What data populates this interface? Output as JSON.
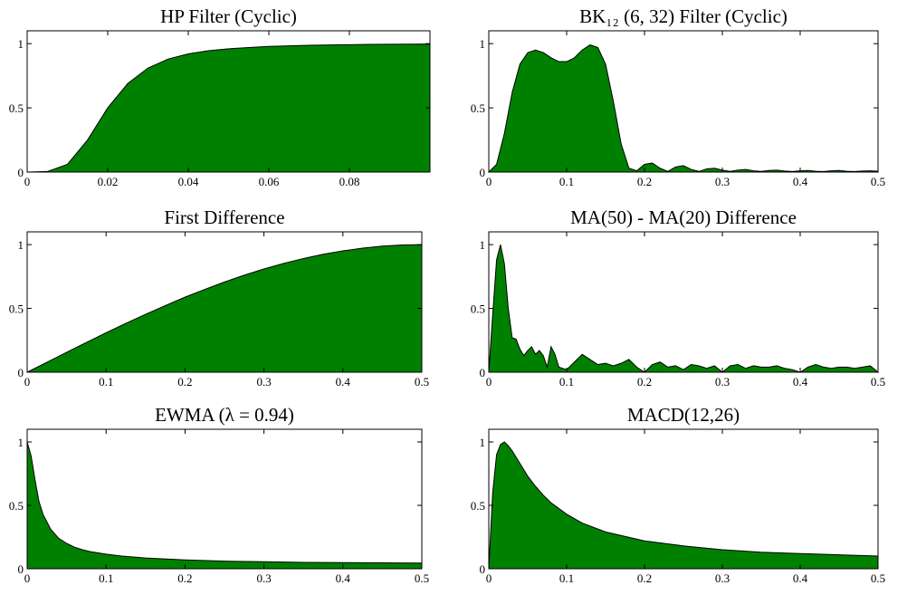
{
  "colors": {
    "fill": "#008000",
    "stroke": "#000000",
    "background": "#ffffff"
  },
  "chart_data": [
    {
      "type": "area",
      "title": "HP Filter (Cyclic)",
      "xlabel": "",
      "ylabel": "",
      "xlim": [
        0,
        0.1
      ],
      "ylim": [
        0,
        1.1
      ],
      "xticks": [
        0,
        0.02,
        0.04,
        0.06,
        0.08
      ],
      "xtick_labels": [
        "0",
        "0.02",
        "0.04",
        "0.06",
        "0.08"
      ],
      "yticks": [
        0,
        0.5,
        1
      ],
      "ytick_labels": [
        "0",
        "0.5",
        "1"
      ],
      "series": [
        {
          "x": [
            0,
            0.005,
            0.01,
            0.015,
            0.02,
            0.025,
            0.03,
            0.035,
            0.04,
            0.045,
            0.05,
            0.055,
            0.06,
            0.065,
            0.07,
            0.075,
            0.08,
            0.085,
            0.09,
            0.095,
            0.1
          ],
          "y": [
            0,
            0.004,
            0.06,
            0.25,
            0.5,
            0.69,
            0.81,
            0.88,
            0.92,
            0.945,
            0.96,
            0.97,
            0.978,
            0.983,
            0.987,
            0.99,
            0.992,
            0.994,
            0.995,
            0.996,
            0.997
          ]
        }
      ]
    },
    {
      "type": "area",
      "title": "BK₁₂ (6, 32) Filter (Cyclic)",
      "xlabel": "",
      "ylabel": "",
      "xlim": [
        0,
        0.5
      ],
      "ylim": [
        0,
        1.1
      ],
      "xticks": [
        0,
        0.1,
        0.2,
        0.3,
        0.4,
        0.5
      ],
      "xtick_labels": [
        "0",
        "0.1",
        "0.2",
        "0.3",
        "0.4",
        "0.5"
      ],
      "yticks": [
        0,
        0.5,
        1
      ],
      "ytick_labels": [
        "0",
        "0.5",
        "1"
      ],
      "series": [
        {
          "x": [
            0,
            0.01,
            0.02,
            0.03,
            0.04,
            0.05,
            0.06,
            0.07,
            0.08,
            0.09,
            0.1,
            0.11,
            0.12,
            0.13,
            0.14,
            0.15,
            0.16,
            0.17,
            0.18,
            0.19,
            0.2,
            0.21,
            0.22,
            0.23,
            0.24,
            0.25,
            0.26,
            0.27,
            0.28,
            0.29,
            0.3,
            0.31,
            0.32,
            0.33,
            0.34,
            0.35,
            0.36,
            0.37,
            0.38,
            0.39,
            0.4,
            0.41,
            0.42,
            0.43,
            0.44,
            0.45,
            0.46,
            0.47,
            0.48,
            0.49,
            0.5
          ],
          "y": [
            0,
            0.06,
            0.3,
            0.62,
            0.84,
            0.93,
            0.95,
            0.93,
            0.89,
            0.86,
            0.86,
            0.89,
            0.95,
            0.99,
            0.97,
            0.84,
            0.55,
            0.22,
            0.03,
            0.01,
            0.06,
            0.07,
            0.03,
            0.005,
            0.04,
            0.05,
            0.02,
            0.005,
            0.025,
            0.03,
            0.015,
            0.005,
            0.015,
            0.02,
            0.01,
            0.005,
            0.012,
            0.015,
            0.008,
            0.004,
            0.01,
            0.012,
            0.006,
            0.004,
            0.01,
            0.012,
            0.006,
            0.004,
            0.008,
            0.01,
            0.006
          ]
        }
      ]
    },
    {
      "type": "area",
      "title": "First Difference",
      "xlabel": "",
      "ylabel": "",
      "xlim": [
        0,
        0.5
      ],
      "ylim": [
        0,
        1.1
      ],
      "xticks": [
        0,
        0.1,
        0.2,
        0.3,
        0.4,
        0.5
      ],
      "xtick_labels": [
        "0",
        "0.1",
        "0.2",
        "0.3",
        "0.4",
        "0.5"
      ],
      "yticks": [
        0,
        0.5,
        1
      ],
      "ytick_labels": [
        "0",
        "0.5",
        "1"
      ],
      "series": [
        {
          "x": [
            0,
            0.025,
            0.05,
            0.075,
            0.1,
            0.125,
            0.15,
            0.175,
            0.2,
            0.225,
            0.25,
            0.275,
            0.3,
            0.325,
            0.35,
            0.375,
            0.4,
            0.425,
            0.45,
            0.475,
            0.5
          ],
          "y": [
            0,
            0.078,
            0.156,
            0.233,
            0.309,
            0.383,
            0.454,
            0.522,
            0.588,
            0.649,
            0.707,
            0.76,
            0.809,
            0.853,
            0.891,
            0.924,
            0.951,
            0.972,
            0.988,
            0.997,
            1.0
          ]
        }
      ]
    },
    {
      "type": "area",
      "title": "MA(50) - MA(20) Difference",
      "xlabel": "",
      "ylabel": "",
      "xlim": [
        0,
        0.5
      ],
      "ylim": [
        0,
        1.1
      ],
      "xticks": [
        0,
        0.1,
        0.2,
        0.3,
        0.4,
        0.5
      ],
      "xtick_labels": [
        "0",
        "0.1",
        "0.2",
        "0.3",
        "0.4",
        "0.5"
      ],
      "yticks": [
        0,
        0.5,
        1
      ],
      "ytick_labels": [
        "0",
        "0.5",
        "1"
      ],
      "series": [
        {
          "x": [
            0,
            0.005,
            0.01,
            0.015,
            0.02,
            0.025,
            0.03,
            0.035,
            0.04,
            0.045,
            0.05,
            0.055,
            0.06,
            0.065,
            0.07,
            0.075,
            0.08,
            0.085,
            0.09,
            0.1,
            0.11,
            0.12,
            0.13,
            0.14,
            0.15,
            0.16,
            0.17,
            0.18,
            0.19,
            0.2,
            0.21,
            0.22,
            0.23,
            0.24,
            0.25,
            0.26,
            0.27,
            0.28,
            0.29,
            0.3,
            0.31,
            0.32,
            0.33,
            0.34,
            0.35,
            0.36,
            0.37,
            0.38,
            0.39,
            0.4,
            0.41,
            0.42,
            0.43,
            0.44,
            0.45,
            0.46,
            0.47,
            0.48,
            0.49,
            0.5
          ],
          "y": [
            0,
            0.45,
            0.88,
            1.0,
            0.85,
            0.5,
            0.27,
            0.26,
            0.18,
            0.13,
            0.17,
            0.2,
            0.14,
            0.17,
            0.13,
            0.04,
            0.2,
            0.14,
            0.04,
            0.02,
            0.08,
            0.14,
            0.1,
            0.06,
            0.07,
            0.05,
            0.07,
            0.1,
            0.04,
            0.0,
            0.06,
            0.08,
            0.04,
            0.05,
            0.02,
            0.06,
            0.05,
            0.03,
            0.05,
            0.0,
            0.05,
            0.06,
            0.03,
            0.05,
            0.04,
            0.04,
            0.05,
            0.03,
            0.02,
            0.0,
            0.04,
            0.06,
            0.04,
            0.03,
            0.04,
            0.04,
            0.03,
            0.04,
            0.05,
            0.0
          ]
        }
      ]
    },
    {
      "type": "area",
      "title": "EWMA (λ = 0.94)",
      "xlabel": "",
      "ylabel": "",
      "xlim": [
        0,
        0.5
      ],
      "ylim": [
        0,
        1.1
      ],
      "xticks": [
        0,
        0.1,
        0.2,
        0.3,
        0.4,
        0.5
      ],
      "xtick_labels": [
        "0",
        "0.1",
        "0.2",
        "0.3",
        "0.4",
        "0.5"
      ],
      "yticks": [
        0,
        0.5,
        1
      ],
      "ytick_labels": [
        "0",
        "0.5",
        "1"
      ],
      "series": [
        {
          "x": [
            0,
            0.005,
            0.01,
            0.015,
            0.02,
            0.03,
            0.04,
            0.05,
            0.06,
            0.07,
            0.08,
            0.1,
            0.12,
            0.15,
            0.2,
            0.25,
            0.3,
            0.35,
            0.4,
            0.45,
            0.5
          ],
          "y": [
            1.0,
            0.89,
            0.7,
            0.53,
            0.43,
            0.31,
            0.24,
            0.2,
            0.17,
            0.15,
            0.135,
            0.115,
            0.1,
            0.085,
            0.07,
            0.06,
            0.055,
            0.05,
            0.048,
            0.046,
            0.045
          ]
        }
      ]
    },
    {
      "type": "area",
      "title": "MACD(12,26)",
      "xlabel": "",
      "ylabel": "",
      "xlim": [
        0,
        0.5
      ],
      "ylim": [
        0,
        1.1
      ],
      "xticks": [
        0,
        0.1,
        0.2,
        0.3,
        0.4,
        0.5
      ],
      "xtick_labels": [
        "0",
        "0.1",
        "0.2",
        "0.3",
        "0.4",
        "0.5"
      ],
      "yticks": [
        0,
        0.5,
        1
      ],
      "ytick_labels": [
        "0",
        "0.5",
        "1"
      ],
      "series": [
        {
          "x": [
            0,
            0.005,
            0.01,
            0.015,
            0.02,
            0.025,
            0.03,
            0.04,
            0.05,
            0.06,
            0.07,
            0.08,
            0.1,
            0.12,
            0.15,
            0.2,
            0.25,
            0.3,
            0.35,
            0.4,
            0.45,
            0.5
          ],
          "y": [
            0,
            0.6,
            0.9,
            0.98,
            1.0,
            0.97,
            0.93,
            0.83,
            0.73,
            0.65,
            0.58,
            0.52,
            0.43,
            0.36,
            0.29,
            0.22,
            0.18,
            0.15,
            0.13,
            0.12,
            0.11,
            0.1
          ]
        }
      ]
    }
  ]
}
